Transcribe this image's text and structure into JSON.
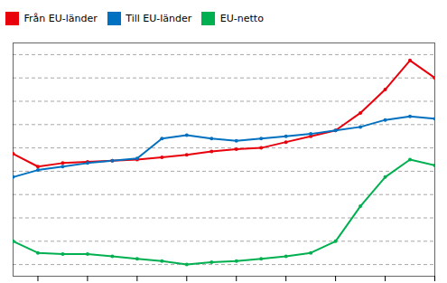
{
  "chart_data": {
    "type": "line",
    "x": [
      1992,
      1993,
      1994,
      1995,
      1996,
      1997,
      1998,
      1999,
      2000,
      2001,
      2002,
      2003,
      2004,
      2005,
      2006,
      2007,
      2008,
      2009
    ],
    "series": [
      {
        "name": "Från EU-länder",
        "color": "#e8000a",
        "marker": "circle",
        "values": [
          5500,
          4400,
          4700,
          4800,
          4900,
          5000,
          5200,
          5400,
          5700,
          5900,
          6000,
          6500,
          7000,
          7500,
          9000,
          11000,
          13500,
          12000
        ]
      },
      {
        "name": "Till EU-länder",
        "color": "#0070c0",
        "marker": "circle",
        "values": [
          3500,
          4100,
          4400,
          4700,
          4900,
          5100,
          6800,
          7100,
          6800,
          6600,
          6800,
          7000,
          7200,
          7500,
          7800,
          8400,
          8700,
          8500
        ]
      },
      {
        "name": "EU-netto",
        "color": "#00b050",
        "marker": "circle",
        "values": [
          -2000,
          -3000,
          -3100,
          -3100,
          -3300,
          -3500,
          -3700,
          -4000,
          -3800,
          -3700,
          -3500,
          -3300,
          -3000,
          -2000,
          1000,
          3500,
          5000,
          4500
        ]
      }
    ],
    "xlim": [
      1992,
      2009
    ],
    "xticks": [
      1993,
      1995,
      1997,
      1999,
      2001,
      2003,
      2005,
      2007,
      2009
    ],
    "ylim": [
      -5000,
      15000
    ],
    "yticks": [
      -4000,
      -2000,
      0,
      2000,
      4000,
      6000,
      8000,
      10000,
      12000,
      14000
    ],
    "grid": true,
    "tick_labels": false,
    "legend": "top-left"
  }
}
